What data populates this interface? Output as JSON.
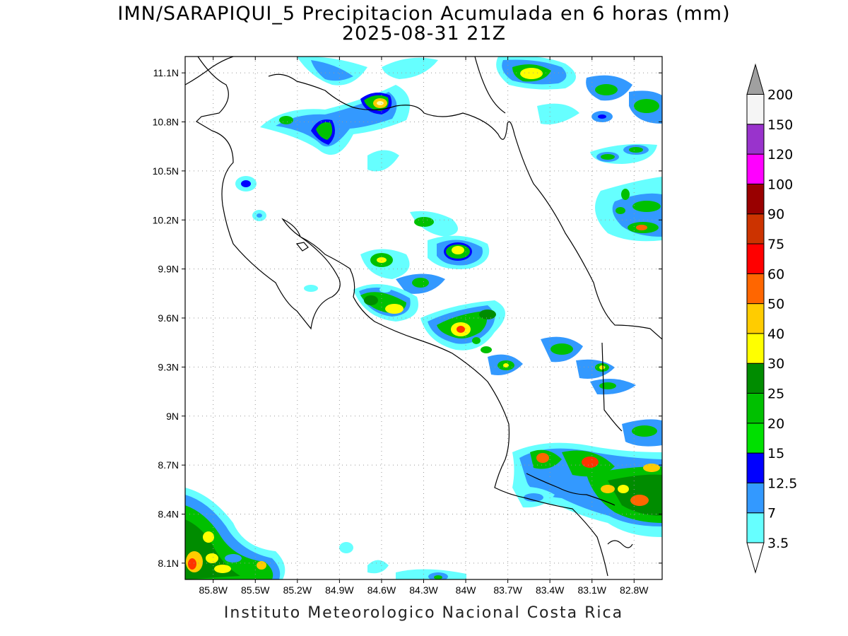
{
  "title_line1": "IMN/SARAPIQUI_5 Precipitacion Acumulada en 6 horas (mm)",
  "title_line2": "2025-08-31 21Z",
  "footer": "Instituto Meteorologico Nacional Costa Rica",
  "map": {
    "lon_range": [
      -86.0,
      -82.6
    ],
    "lat_range": [
      8.0,
      11.2
    ],
    "lon_ticks": [
      "85.8W",
      "85.5W",
      "85.2W",
      "84.9W",
      "84.6W",
      "84.3W",
      "84W",
      "83.7W",
      "83.4W",
      "83.1W",
      "82.8W"
    ],
    "lat_ticks": [
      "8.1N",
      "8.4N",
      "8.7N",
      "9N",
      "9.3N",
      "9.6N",
      "9.9N",
      "10.2N",
      "10.5N",
      "10.8N",
      "11.1N"
    ],
    "grid": "dotted"
  },
  "colorbar": {
    "labels": [
      "3.5",
      "7",
      "12.5",
      "15",
      "20",
      "25",
      "30",
      "40",
      "50",
      "60",
      "75",
      "90",
      "100",
      "120",
      "150",
      "200"
    ],
    "colors": [
      "#66ffff",
      "#3399ff",
      "#0000ff",
      "#00e000",
      "#00c000",
      "#008c00",
      "#ffff00",
      "#ffcc00",
      "#ff6600",
      "#ff0000",
      "#cc3300",
      "#990000",
      "#ff00ff",
      "#9933cc",
      "#f5f5f5",
      "#a0a0a0"
    ]
  }
}
